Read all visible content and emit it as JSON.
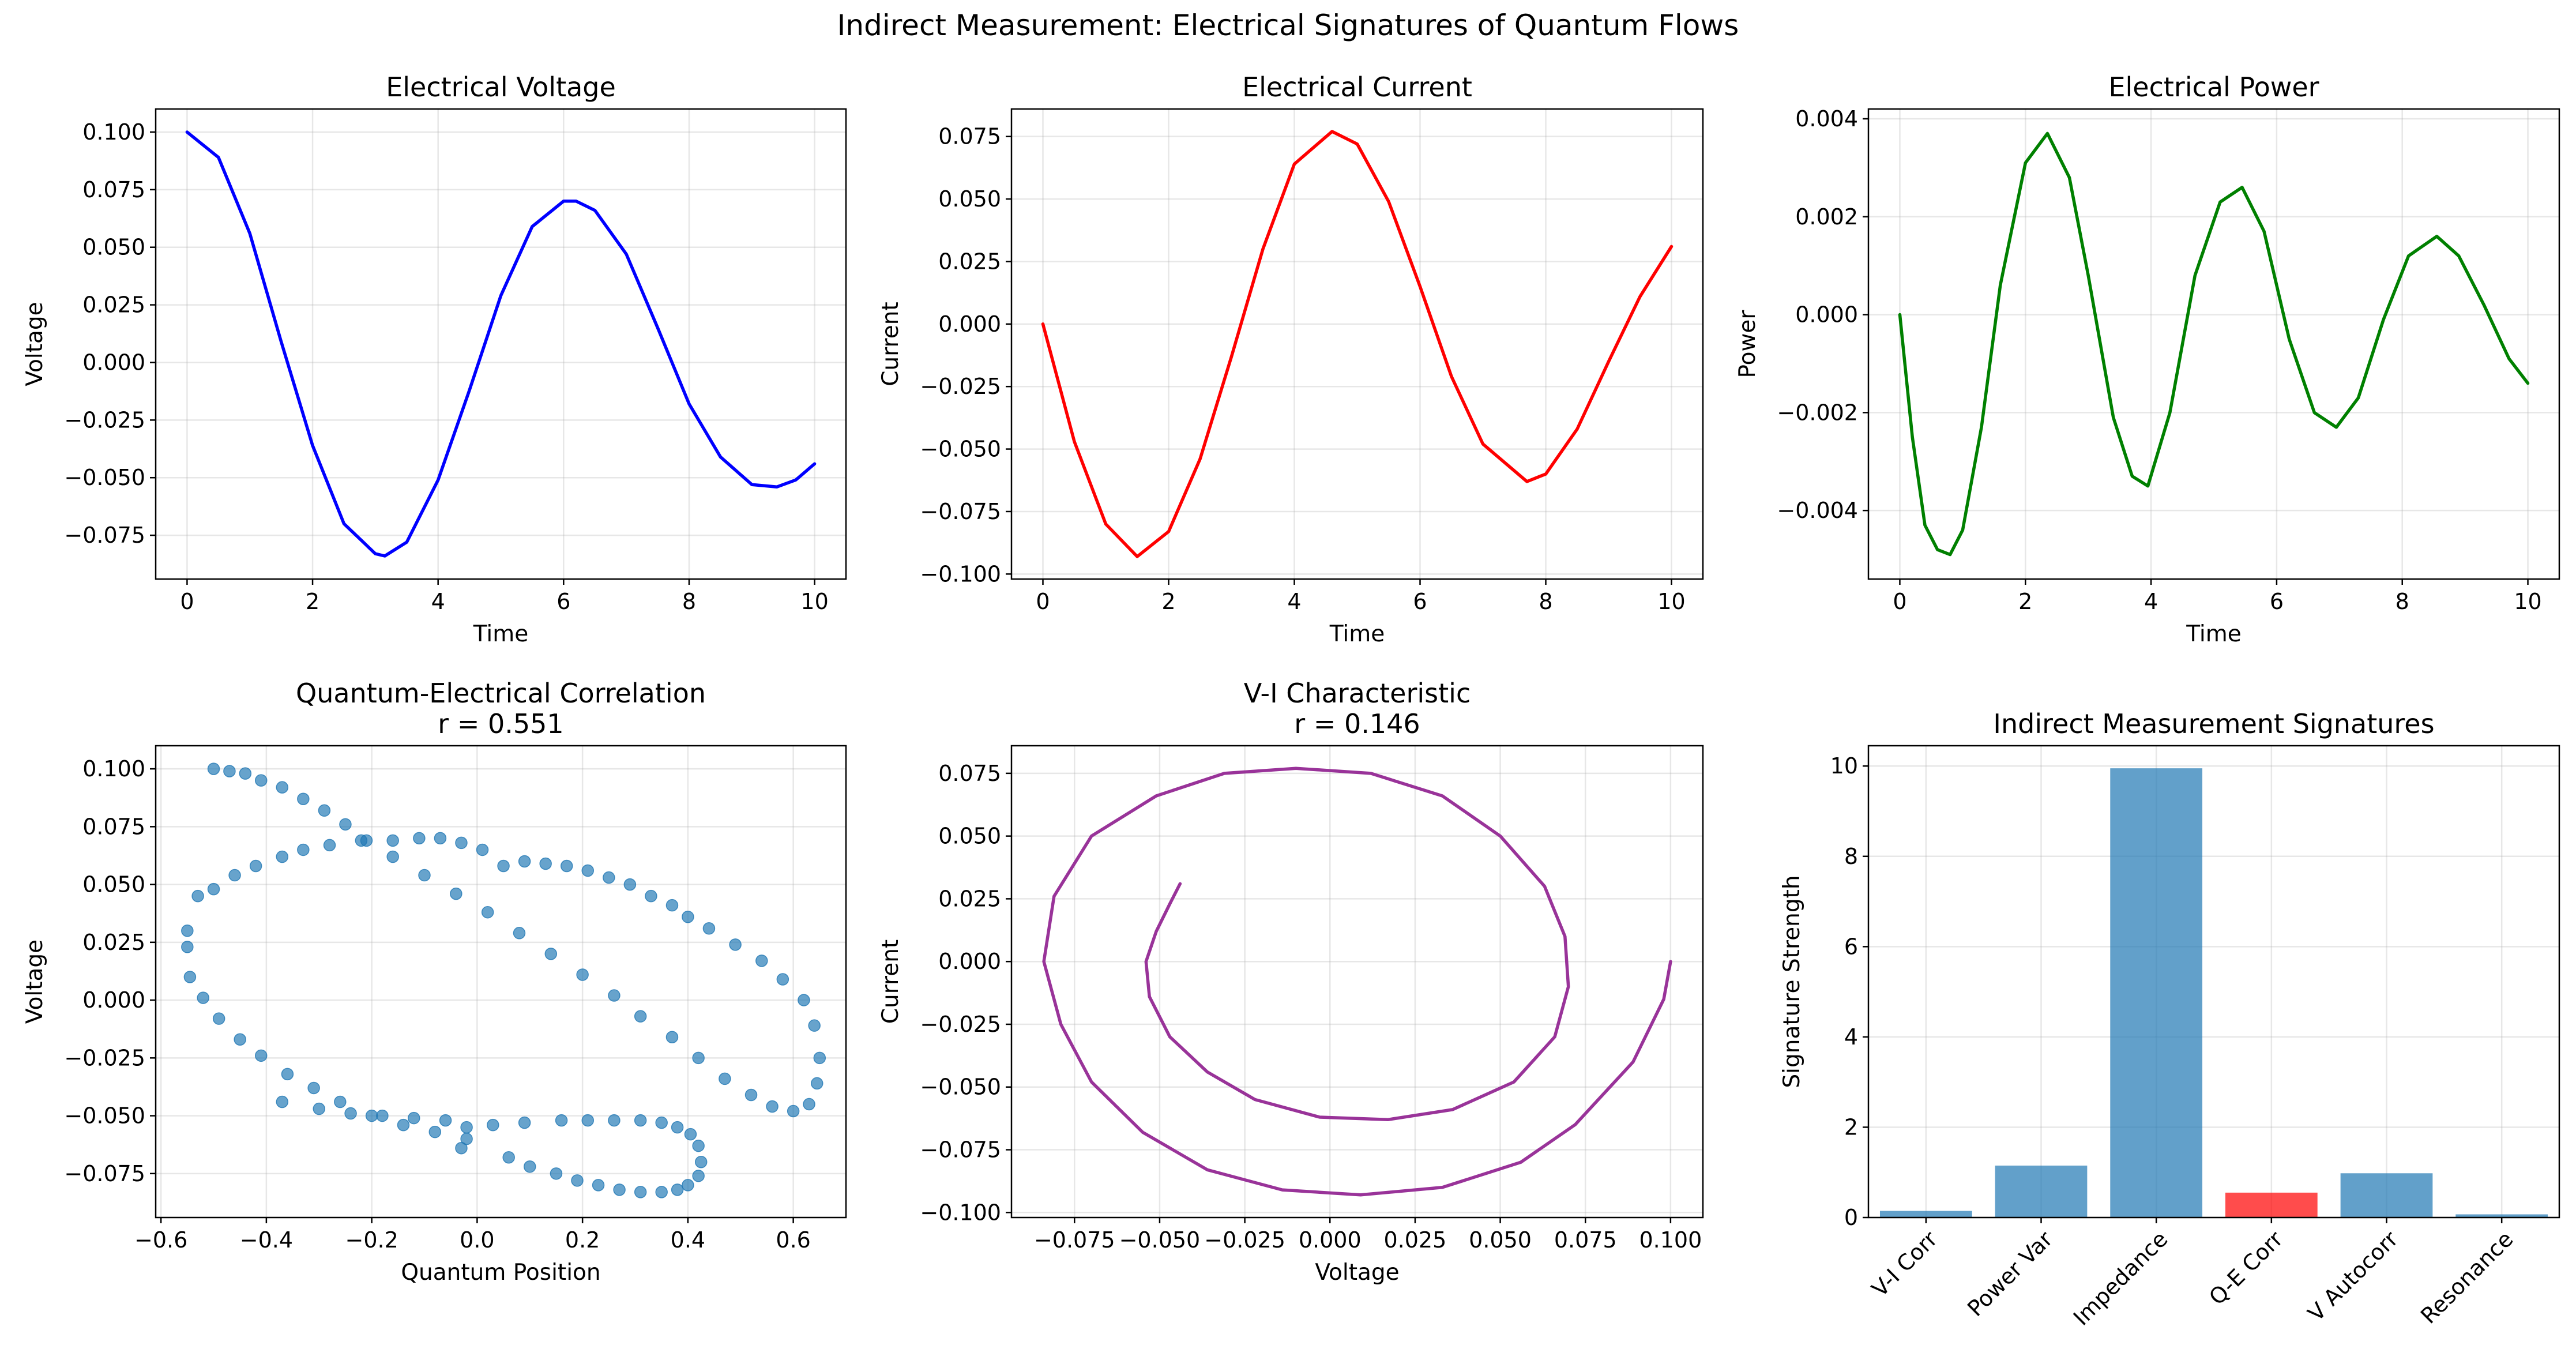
{
  "figure": {
    "suptitle": "Indirect Measurement: Electrical Signatures of Quantum Flows"
  },
  "colors": {
    "voltage": "#0000ff",
    "current": "#ff0000",
    "power": "#008000",
    "scatter": "#1f77b4",
    "vi": "#993399",
    "bar": "#1f77b4",
    "bar_highlight": "#ff0000"
  },
  "chart_data": [
    {
      "id": "voltage",
      "type": "line",
      "title": "Electrical Voltage",
      "xlabel": "Time",
      "ylabel": "Voltage",
      "xlim": [
        -0.5,
        10.5
      ],
      "ylim": [
        -0.094,
        0.11
      ],
      "xticks": [
        "0",
        "2",
        "4",
        "6",
        "8",
        "10"
      ],
      "yticks": [
        "0.100",
        "0.075",
        "0.050",
        "0.025",
        "0.000",
        "−0.025",
        "−0.050",
        "−0.075"
      ],
      "grid": true,
      "series": [
        {
          "color_key": "voltage",
          "x": [
            0,
            0.5,
            1,
            1.5,
            2,
            2.5,
            3,
            3.15,
            3.5,
            4,
            4.5,
            5,
            5.5,
            6,
            6.2,
            6.5,
            7,
            7.5,
            8,
            8.5,
            9,
            9.4,
            9.7,
            10
          ],
          "y": [
            0.1,
            0.089,
            0.056,
            0.009,
            -0.036,
            -0.07,
            -0.083,
            -0.084,
            -0.078,
            -0.051,
            -0.012,
            0.029,
            0.059,
            0.07,
            0.07,
            0.066,
            0.047,
            0.015,
            -0.018,
            -0.041,
            -0.053,
            -0.054,
            -0.051,
            -0.044
          ]
        }
      ]
    },
    {
      "id": "current",
      "type": "line",
      "title": "Electrical Current",
      "xlabel": "Time",
      "ylabel": "Current",
      "xlim": [
        -0.5,
        10.5
      ],
      "ylim": [
        -0.102,
        0.086
      ],
      "xticks": [
        "0",
        "2",
        "4",
        "6",
        "8",
        "10"
      ],
      "yticks": [
        "0.075",
        "0.050",
        "0.025",
        "0.000",
        "−0.025",
        "−0.050",
        "−0.075",
        "−0.100"
      ],
      "grid": true,
      "series": [
        {
          "color_key": "current",
          "x": [
            0,
            0.5,
            1,
            1.5,
            2,
            2.5,
            3,
            3.5,
            4,
            4.6,
            5,
            5.5,
            6,
            6.5,
            7,
            7.7,
            8,
            8.5,
            9,
            9.5,
            10
          ],
          "y": [
            0.0,
            -0.047,
            -0.08,
            -0.093,
            -0.083,
            -0.054,
            -0.013,
            0.03,
            0.064,
            0.077,
            0.072,
            0.049,
            0.015,
            -0.021,
            -0.048,
            -0.063,
            -0.06,
            -0.042,
            -0.015,
            0.011,
            0.031
          ]
        }
      ]
    },
    {
      "id": "power",
      "type": "line",
      "title": "Electrical Power",
      "xlabel": "Time",
      "ylabel": "Power",
      "xlim": [
        -0.5,
        10.5
      ],
      "ylim": [
        -0.0054,
        0.0042
      ],
      "xticks": [
        "0",
        "2",
        "4",
        "6",
        "8",
        "10"
      ],
      "yticks": [
        "0.004",
        "0.002",
        "0.000",
        "−0.002",
        "−0.004"
      ],
      "grid": true,
      "series": [
        {
          "color_key": "power",
          "x": [
            0,
            0.2,
            0.4,
            0.6,
            0.8,
            1.0,
            1.3,
            1.6,
            2.0,
            2.35,
            2.7,
            3.0,
            3.4,
            3.7,
            3.95,
            4.3,
            4.7,
            5.1,
            5.45,
            5.8,
            6.2,
            6.6,
            6.95,
            7.3,
            7.7,
            8.1,
            8.55,
            8.9,
            9.3,
            9.7,
            10.0
          ],
          "y": [
            0.0,
            -0.0025,
            -0.0043,
            -0.0048,
            -0.0049,
            -0.0044,
            -0.0023,
            0.0006,
            0.0031,
            0.0037,
            0.0028,
            0.0008,
            -0.0021,
            -0.0033,
            -0.0035,
            -0.002,
            0.0008,
            0.0023,
            0.0026,
            0.0017,
            -0.0005,
            -0.002,
            -0.0023,
            -0.0017,
            -0.0001,
            0.0012,
            0.0016,
            0.0012,
            0.0002,
            -0.0009,
            -0.0014
          ]
        }
      ]
    },
    {
      "id": "scatter",
      "type": "scatter",
      "title": "Quantum-Electrical Correlation",
      "title2": "r = 0.551",
      "xlabel": "Quantum Position",
      "ylabel": "Voltage",
      "xlim": [
        -0.61,
        0.7
      ],
      "ylim": [
        -0.094,
        0.11
      ],
      "xticks": [
        "−0.6",
        "−0.4",
        "−0.2",
        "0.0",
        "0.2",
        "0.4",
        "0.6"
      ],
      "yticks": [
        "0.100",
        "0.075",
        "0.050",
        "0.025",
        "0.000",
        "−0.025",
        "−0.050",
        "−0.075"
      ],
      "grid": true,
      "series": [
        {
          "color_key": "scatter",
          "x": [
            -0.5,
            -0.47,
            -0.44,
            -0.41,
            -0.37,
            -0.33,
            -0.29,
            -0.25,
            -0.21,
            -0.16,
            -0.1,
            -0.04,
            0.02,
            0.08,
            0.14,
            0.2,
            0.26,
            0.31,
            0.37,
            0.42,
            0.47,
            0.52,
            0.56,
            0.6,
            0.63,
            0.645,
            0.65,
            0.64,
            0.62,
            0.58,
            0.54,
            0.49,
            0.44,
            0.4,
            0.37,
            0.33,
            0.29,
            0.25,
            0.21,
            0.17,
            0.13,
            0.09,
            0.05,
            0.01,
            -0.03,
            -0.07,
            -0.11,
            -0.16,
            -0.22,
            -0.28,
            -0.33,
            -0.37,
            -0.42,
            -0.46,
            -0.5,
            -0.53,
            -0.55,
            -0.55,
            -0.545,
            -0.52,
            -0.49,
            -0.45,
            -0.41,
            -0.36,
            -0.31,
            -0.26,
            -0.2,
            -0.14,
            -0.08,
            -0.02,
            -0.03,
            0.06,
            0.1,
            0.15,
            0.19,
            0.23,
            0.27,
            0.31,
            0.35,
            0.38,
            0.4,
            0.42,
            0.425,
            0.42,
            0.405,
            0.38,
            0.35,
            0.31,
            0.26,
            0.21,
            0.16,
            0.09,
            0.03,
            -0.02,
            -0.06,
            -0.12,
            -0.18,
            -0.24,
            -0.3,
            -0.37
          ],
          "y": [
            0.1,
            0.099,
            0.098,
            0.095,
            0.092,
            0.087,
            0.082,
            0.076,
            0.069,
            0.062,
            0.054,
            0.046,
            0.038,
            0.029,
            0.02,
            0.011,
            0.002,
            -0.007,
            -0.016,
            -0.025,
            -0.034,
            -0.041,
            -0.046,
            -0.048,
            -0.045,
            -0.036,
            -0.025,
            -0.011,
            0.0,
            0.009,
            0.017,
            0.024,
            0.031,
            0.036,
            0.041,
            0.045,
            0.05,
            0.053,
            0.056,
            0.058,
            0.059,
            0.06,
            0.058,
            0.065,
            0.068,
            0.07,
            0.07,
            0.069,
            0.069,
            0.067,
            0.065,
            0.062,
            0.058,
            0.054,
            0.048,
            0.045,
            0.03,
            0.023,
            0.01,
            0.001,
            -0.008,
            -0.017,
            -0.024,
            -0.032,
            -0.038,
            -0.044,
            -0.05,
            -0.054,
            -0.057,
            -0.06,
            -0.064,
            -0.068,
            -0.072,
            -0.075,
            -0.078,
            -0.08,
            -0.082,
            -0.083,
            -0.083,
            -0.082,
            -0.08,
            -0.076,
            -0.07,
            -0.063,
            -0.058,
            -0.055,
            -0.053,
            -0.052,
            -0.052,
            -0.052,
            -0.052,
            -0.053,
            -0.054,
            -0.055,
            -0.052,
            -0.051,
            -0.05,
            -0.049,
            -0.047,
            -0.044
          ]
        }
      ]
    },
    {
      "id": "vi",
      "type": "line",
      "title": "V-I Characteristic",
      "title2": "r = 0.146",
      "xlabel": "Voltage",
      "ylabel": "Current",
      "xlim": [
        -0.0935,
        0.1095
      ],
      "ylim": [
        -0.102,
        0.086
      ],
      "xticks": [
        "−0.075",
        "−0.050",
        "−0.025",
        "0.000",
        "0.025",
        "0.050",
        "0.075",
        "0.100"
      ],
      "yticks": [
        "0.075",
        "0.050",
        "0.025",
        "0.000",
        "−0.025",
        "−0.050",
        "−0.075",
        "−0.100"
      ],
      "grid": true,
      "series": [
        {
          "color_key": "vi",
          "x": [
            0.1,
            0.098,
            0.089,
            0.072,
            0.056,
            0.033,
            0.009,
            -0.014,
            -0.036,
            -0.055,
            -0.07,
            -0.079,
            -0.084,
            -0.081,
            -0.07,
            -0.051,
            -0.031,
            -0.01,
            0.012,
            0.033,
            0.05,
            0.063,
            0.069,
            0.07,
            0.066,
            0.054,
            0.036,
            0.017,
            -0.003,
            -0.022,
            -0.036,
            -0.047,
            -0.053,
            -0.054,
            -0.051,
            -0.047,
            -0.044
          ],
          "y": [
            0.0,
            -0.015,
            -0.04,
            -0.065,
            -0.08,
            -0.09,
            -0.093,
            -0.091,
            -0.083,
            -0.068,
            -0.048,
            -0.025,
            0.0,
            0.026,
            0.05,
            0.066,
            0.075,
            0.077,
            0.075,
            0.066,
            0.05,
            0.03,
            0.01,
            -0.01,
            -0.03,
            -0.048,
            -0.059,
            -0.063,
            -0.062,
            -0.055,
            -0.044,
            -0.03,
            -0.014,
            0.0,
            0.012,
            0.023,
            0.031
          ]
        }
      ]
    },
    {
      "id": "bars",
      "type": "bar",
      "title": "Indirect Measurement Signatures",
      "xlabel": "",
      "ylabel": "Signature Strength",
      "ylim": [
        0,
        10.45
      ],
      "yticks": [
        "0",
        "2",
        "4",
        "6",
        "8",
        "10"
      ],
      "grid": true,
      "categories": [
        "V-I Corr",
        "Power Var",
        "Impedance",
        "Q-E Corr",
        "V Autocorr",
        "Resonance"
      ],
      "values": [
        0.146,
        1.15,
        9.95,
        0.551,
        0.98,
        0.07
      ],
      "bar_color_keys": [
        "bar",
        "bar",
        "bar",
        "bar_highlight",
        "bar",
        "bar"
      ]
    }
  ]
}
